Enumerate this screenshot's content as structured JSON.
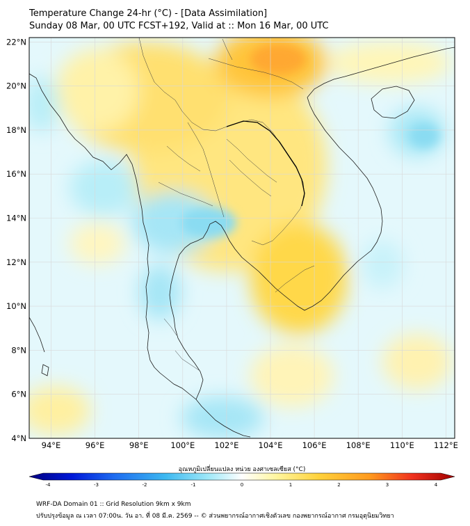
{
  "header": {
    "title_line1": "Temperature Change 24-hr (°C) - [Data Assimilation]",
    "title_line2": "Sunday 08 Mar, 00 UTC FCST+192, Valid at :: Mon 16 Mar, 00 UTC"
  },
  "map": {
    "lat_labels": [
      "22°N",
      "20°N",
      "18°N",
      "16°N",
      "14°N",
      "12°N",
      "10°N",
      "8°N",
      "6°N",
      "4°N"
    ],
    "lon_labels": [
      "94°E",
      "96°E",
      "98°E",
      "100°E",
      "102°E",
      "104°E",
      "106°E",
      "108°E",
      "110°E",
      "112°E"
    ],
    "extent": {
      "lon_min": 93.0,
      "lon_max": 112.4,
      "lat_min": 4.0,
      "lat_max": 22.2
    }
  },
  "colorbar": {
    "label": "อุณหภูมิเปลี่ยนแปลง หน่วย องศาเซลเซียส (°C)",
    "min": -4,
    "max": 4,
    "tick_labels": [
      "-4",
      "-3",
      "-2",
      "-1",
      "0",
      "1",
      "2",
      "3",
      "4"
    ],
    "colors": [
      "#000080",
      "#0018d8",
      "#1e6cf0",
      "#3cb8f0",
      "#9ee8f8",
      "#ffffff",
      "#fff6a0",
      "#ffd23c",
      "#ff9a1e",
      "#f0321e",
      "#a00000"
    ]
  },
  "footer": {
    "line1": "WRF-DA Domain 01 :: Grid Resolution 9km x 9km",
    "line2": "ปรับปรุงข้อมูล ณ เวลา 07:00น. วัน อา. ที่ 08 มี.ค. 2569 -- © ส่วนพยากรณ์อากาศเชิงตัวเลข กองพยากรณ์อากาศ กรมอุตุนิยมวิทยา"
  }
}
